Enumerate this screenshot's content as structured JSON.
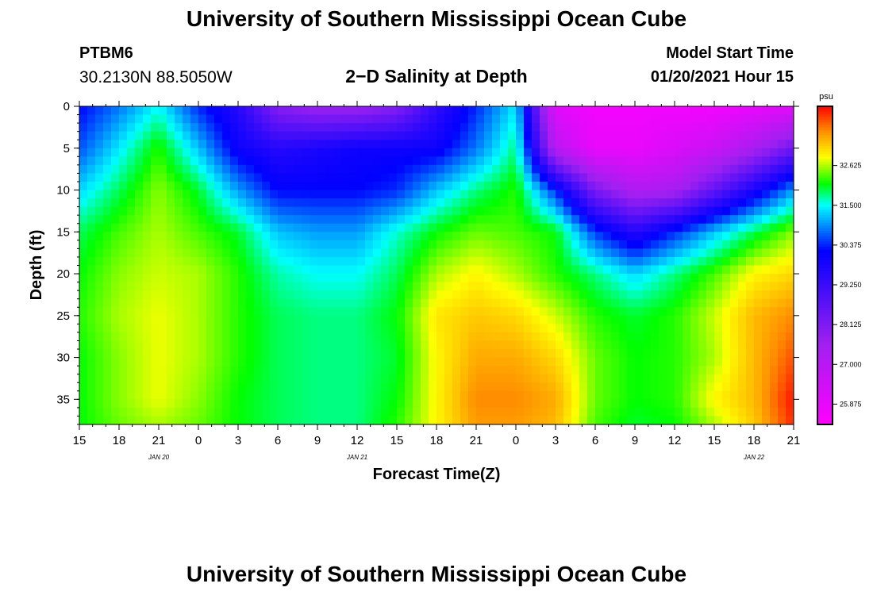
{
  "header": {
    "title": "University of Southern Mississippi Ocean Cube",
    "station": "PTBM6",
    "coords": "30.2130N 88.5050W",
    "subtitle": "2−D Salinity at Depth",
    "model_start_label": "Model Start Time",
    "model_start_time": "01/20/2021 Hour 15"
  },
  "footer": {
    "title": "University of Southern Mississippi Ocean Cube"
  },
  "chart_data": {
    "type": "heatmap",
    "xlabel": "Forecast Time(Z)",
    "ylabel": "Depth (ft)",
    "x_tick_labels": [
      "15",
      "18",
      "21",
      "0",
      "3",
      "6",
      "9",
      "12",
      "15",
      "18",
      "21",
      "0",
      "3",
      "6",
      "9",
      "12",
      "15",
      "18",
      "21"
    ],
    "date_labels": [
      {
        "text": "JAN 20",
        "at_hour": 21
      },
      {
        "text": "JAN 21",
        "at_hour": 36
      },
      {
        "text": "JAN 22",
        "at_hour": 66
      }
    ],
    "x_range_hours": [
      15,
      69
    ],
    "ylim": [
      0,
      38
    ],
    "y_inverted": true,
    "y_ticks": [
      0,
      5,
      10,
      15,
      20,
      25,
      30,
      35
    ],
    "colorbar": {
      "unit": "psu",
      "range": [
        25.3,
        34.3
      ],
      "tick_labels": [
        "32.625",
        "31.500",
        "30.375",
        "29.250",
        "28.125",
        "27.000",
        "25.875"
      ],
      "ticks": [
        32.625,
        31.5,
        30.375,
        29.25,
        28.125,
        27.0,
        25.875
      ],
      "stops": [
        {
          "v": 25.3,
          "c": "#ff00ff"
        },
        {
          "v": 27.6,
          "c": "#a020f0"
        },
        {
          "v": 30.2,
          "c": "#0000ff"
        },
        {
          "v": 31.5,
          "c": "#00ffff"
        },
        {
          "v": 32.1,
          "c": "#00ff00"
        },
        {
          "v": 32.85,
          "c": "#ffff00"
        },
        {
          "v": 33.6,
          "c": "#ff8c00"
        },
        {
          "v": 34.3,
          "c": "#ff0000"
        }
      ]
    },
    "grid_hours": [
      15,
      18,
      21,
      24,
      27,
      30,
      33,
      36,
      39,
      42,
      45,
      48,
      51,
      54,
      57,
      60,
      63,
      66,
      69
    ],
    "grid_depths": [
      0,
      5,
      10,
      15,
      20,
      25,
      30,
      35,
      38
    ],
    "salinity": [
      [
        30.2,
        30.8,
        31.5,
        30.4,
        29.6,
        28.0,
        27.6,
        27.6,
        28.0,
        29.4,
        30.4,
        31.4,
        26.0,
        25.6,
        25.6,
        25.6,
        25.6,
        25.8,
        26.0
      ],
      [
        30.6,
        31.4,
        32.2,
        31.2,
        30.0,
        29.6,
        29.8,
        30.0,
        30.0,
        30.0,
        30.8,
        31.8,
        27.0,
        25.8,
        25.8,
        26.2,
        26.6,
        27.4,
        28.4
      ],
      [
        31.3,
        31.9,
        32.5,
        32.0,
        31.0,
        30.2,
        30.2,
        30.2,
        30.4,
        31.2,
        31.8,
        32.2,
        30.4,
        28.2,
        27.2,
        27.4,
        28.6,
        29.8,
        31.0
      ],
      [
        31.9,
        32.3,
        32.6,
        32.3,
        32.0,
        31.2,
        31.0,
        31.0,
        31.6,
        32.1,
        32.4,
        32.3,
        32.1,
        30.5,
        29.6,
        30.4,
        31.2,
        31.9,
        32.5
      ],
      [
        32.1,
        32.5,
        32.7,
        32.6,
        32.2,
        31.7,
        31.5,
        31.5,
        31.9,
        32.6,
        32.9,
        32.6,
        32.2,
        31.8,
        31.3,
        31.8,
        32.3,
        32.9,
        33.1
      ],
      [
        32.2,
        32.6,
        32.8,
        32.6,
        32.2,
        31.9,
        31.8,
        31.8,
        32.1,
        33.0,
        33.2,
        33.1,
        32.7,
        32.2,
        32.0,
        32.2,
        32.7,
        33.3,
        33.6
      ],
      [
        32.1,
        32.5,
        32.8,
        32.6,
        32.2,
        31.9,
        31.8,
        31.8,
        32.0,
        32.9,
        33.4,
        33.4,
        33.1,
        32.4,
        32.1,
        32.2,
        32.6,
        33.3,
        33.9
      ],
      [
        32.1,
        32.5,
        32.8,
        32.5,
        32.1,
        31.9,
        31.8,
        31.8,
        32.1,
        32.9,
        33.6,
        33.6,
        33.4,
        32.4,
        32.1,
        32.2,
        32.9,
        33.3,
        34.2
      ],
      [
        32.1,
        32.4,
        32.6,
        32.4,
        32.1,
        31.9,
        31.8,
        31.8,
        32.2,
        32.9,
        33.5,
        33.5,
        33.3,
        32.3,
        32.0,
        32.1,
        32.6,
        33.2,
        34.1
      ]
    ]
  }
}
